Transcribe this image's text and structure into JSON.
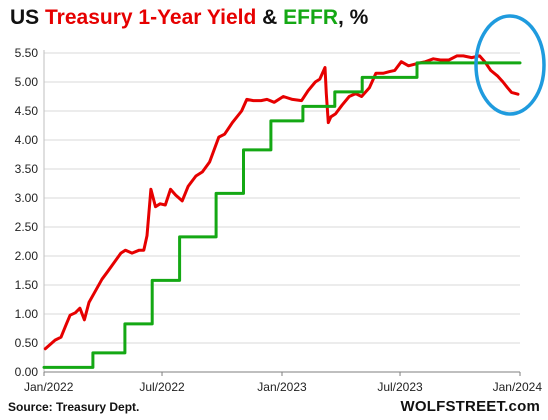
{
  "title_parts": {
    "part1": "US ",
    "part2": "Treasury 1-Year Yield",
    "part3": " & ",
    "part4": "EFFR",
    "part5": ", %"
  },
  "colors": {
    "yield": "#e60000",
    "effr": "#14a814",
    "highlight_circle": "#1f9bde",
    "gridline": "#d9d9d9"
  },
  "source": "Source: Treasury Dept.",
  "brand": "WOLFSTREET.com",
  "chart_data": {
    "type": "line",
    "title": "US Treasury 1-Year Yield & EFFR, %",
    "x_axis": {
      "type": "date",
      "range": [
        "2022-01-01",
        "2024-01-01"
      ],
      "ticks": [
        "2022-01-01",
        "2022-07-01",
        "2023-01-01",
        "2023-07-01",
        "2024-01-01"
      ],
      "tick_labels": [
        "Jan/2022",
        "Jul/2022",
        "Jan/2023",
        "Jul/2023",
        "Jan/2024"
      ]
    },
    "y_axis": {
      "range": [
        0,
        5.5
      ],
      "ticks": [
        0,
        0.5,
        1,
        1.5,
        2,
        2.5,
        3,
        3.5,
        4,
        4.5,
        5,
        5.5
      ],
      "tick_labels": [
        "0.00",
        "0.50",
        "1.00",
        "1.50",
        "2.00",
        "2.50",
        "3.00",
        "3.50",
        "4.00",
        "4.50",
        "5.00",
        "5.50"
      ]
    },
    "grid": "horizontal",
    "series": [
      {
        "name": "Treasury 1-Year Yield",
        "color": "#e60000",
        "style": "line",
        "points": [
          [
            "2022-01-03",
            0.4
          ],
          [
            "2022-01-18",
            0.55
          ],
          [
            "2022-01-27",
            0.6
          ],
          [
            "2022-02-04",
            0.82
          ],
          [
            "2022-02-10",
            0.98
          ],
          [
            "2022-02-18",
            1.02
          ],
          [
            "2022-02-25",
            1.1
          ],
          [
            "2022-03-04",
            0.9
          ],
          [
            "2022-03-11",
            1.2
          ],
          [
            "2022-03-21",
            1.4
          ],
          [
            "2022-03-31",
            1.6
          ],
          [
            "2022-04-08",
            1.72
          ],
          [
            "2022-04-18",
            1.88
          ],
          [
            "2022-04-29",
            2.05
          ],
          [
            "2022-05-06",
            2.1
          ],
          [
            "2022-05-16",
            2.05
          ],
          [
            "2022-05-27",
            2.1
          ],
          [
            "2022-06-03",
            2.1
          ],
          [
            "2022-06-08",
            2.35
          ],
          [
            "2022-06-14",
            3.15
          ],
          [
            "2022-06-21",
            2.85
          ],
          [
            "2022-06-28",
            2.9
          ],
          [
            "2022-07-06",
            2.88
          ],
          [
            "2022-07-14",
            3.15
          ],
          [
            "2022-07-22",
            3.05
          ],
          [
            "2022-08-01",
            2.95
          ],
          [
            "2022-08-10",
            3.2
          ],
          [
            "2022-08-22",
            3.38
          ],
          [
            "2022-09-01",
            3.45
          ],
          [
            "2022-09-12",
            3.62
          ],
          [
            "2022-09-26",
            4.05
          ],
          [
            "2022-10-05",
            4.1
          ],
          [
            "2022-10-17",
            4.3
          ],
          [
            "2022-10-31",
            4.5
          ],
          [
            "2022-11-08",
            4.7
          ],
          [
            "2022-11-18",
            4.68
          ],
          [
            "2022-11-30",
            4.68
          ],
          [
            "2022-12-09",
            4.7
          ],
          [
            "2022-12-20",
            4.65
          ],
          [
            "2023-01-03",
            4.75
          ],
          [
            "2023-01-17",
            4.7
          ],
          [
            "2023-01-31",
            4.68
          ],
          [
            "2023-02-10",
            4.85
          ],
          [
            "2023-02-21",
            5.0
          ],
          [
            "2023-02-28",
            5.05
          ],
          [
            "2023-03-08",
            5.25
          ],
          [
            "2023-03-10",
            4.8
          ],
          [
            "2023-03-13",
            4.3
          ],
          [
            "2023-03-17",
            4.4
          ],
          [
            "2023-03-24",
            4.45
          ],
          [
            "2023-04-03",
            4.6
          ],
          [
            "2023-04-14",
            4.75
          ],
          [
            "2023-04-24",
            4.8
          ],
          [
            "2023-05-03",
            4.75
          ],
          [
            "2023-05-15",
            4.9
          ],
          [
            "2023-05-25",
            5.15
          ],
          [
            "2023-06-05",
            5.15
          ],
          [
            "2023-06-15",
            5.18
          ],
          [
            "2023-06-23",
            5.2
          ],
          [
            "2023-07-03",
            5.35
          ],
          [
            "2023-07-14",
            5.28
          ],
          [
            "2023-07-28",
            5.32
          ],
          [
            "2023-08-09",
            5.35
          ],
          [
            "2023-08-21",
            5.4
          ],
          [
            "2023-09-01",
            5.38
          ],
          [
            "2023-09-14",
            5.38
          ],
          [
            "2023-09-26",
            5.45
          ],
          [
            "2023-10-06",
            5.45
          ],
          [
            "2023-10-19",
            5.42
          ],
          [
            "2023-10-31",
            5.45
          ],
          [
            "2023-11-08",
            5.35
          ],
          [
            "2023-11-17",
            5.2
          ],
          [
            "2023-11-28",
            5.1
          ],
          [
            "2023-12-06",
            5.0
          ],
          [
            "2023-12-13",
            4.9
          ],
          [
            "2023-12-19",
            4.82
          ],
          [
            "2023-12-29",
            4.79
          ]
        ]
      },
      {
        "name": "EFFR",
        "color": "#14a814",
        "style": "step",
        "points": [
          [
            "2022-01-01",
            0.08
          ],
          [
            "2022-03-17",
            0.33
          ],
          [
            "2022-05-05",
            0.83
          ],
          [
            "2022-06-16",
            1.58
          ],
          [
            "2022-07-28",
            2.33
          ],
          [
            "2022-09-22",
            3.08
          ],
          [
            "2022-11-03",
            3.83
          ],
          [
            "2022-12-15",
            4.33
          ],
          [
            "2023-02-02",
            4.58
          ],
          [
            "2023-03-23",
            4.83
          ],
          [
            "2023-05-04",
            5.08
          ],
          [
            "2023-07-27",
            5.33
          ],
          [
            "2024-01-01",
            5.33
          ]
        ]
      }
    ]
  }
}
